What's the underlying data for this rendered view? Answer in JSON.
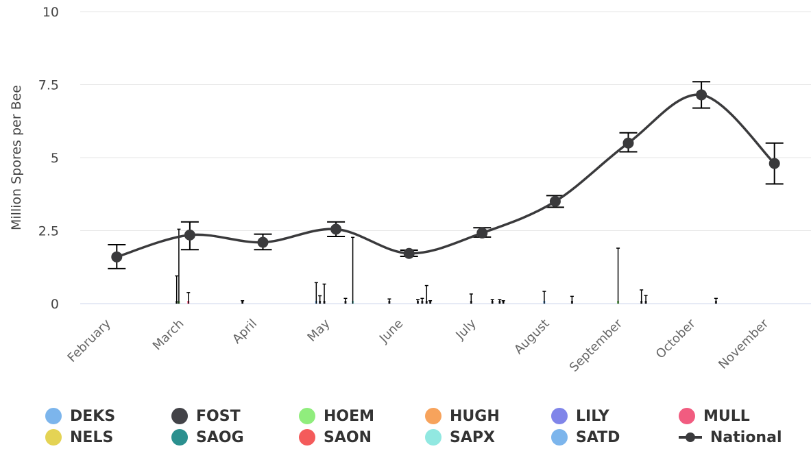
{
  "chart_data": {
    "type": "line",
    "ylabel": "Million Spores per Bee",
    "ylim": [
      0,
      10
    ],
    "y_ticks": [
      "0",
      "2.5",
      "5",
      "7.5",
      "10"
    ],
    "categories": [
      "February",
      "March",
      "April",
      "May",
      "June",
      "July",
      "August",
      "September",
      "October",
      "November"
    ],
    "national": {
      "name": "National",
      "color": "#3a3a3c",
      "values": [
        1.6,
        2.35,
        2.1,
        2.55,
        1.72,
        2.42,
        3.5,
        5.5,
        7.15,
        4.8
      ],
      "error_low": [
        1.2,
        1.85,
        1.85,
        2.3,
        1.62,
        2.28,
        3.3,
        5.2,
        6.7,
        4.1
      ],
      "error_high": [
        2.02,
        2.8,
        2.38,
        2.8,
        1.83,
        2.6,
        3.7,
        5.85,
        7.6,
        5.5
      ]
    },
    "sites": [
      {
        "name": "DEKS",
        "color": "#7cb5ec"
      },
      {
        "name": "FOST",
        "color": "#434348"
      },
      {
        "name": "HOEM",
        "color": "#90ed7d"
      },
      {
        "name": "HUGH",
        "color": "#f7a35c"
      },
      {
        "name": "LILY",
        "color": "#8085e9"
      },
      {
        "name": "MULL",
        "color": "#f15c80"
      },
      {
        "name": "NELS",
        "color": "#e4d354"
      },
      {
        "name": "SAOG",
        "color": "#2b908f"
      },
      {
        "name": "SAON",
        "color": "#f45b5b"
      },
      {
        "name": "SAPX",
        "color": "#91e8e1"
      },
      {
        "name": "SATD",
        "color": "#7cb5ec"
      }
    ],
    "site_errorbars": [
      {
        "x": 0.82,
        "high": 0.95,
        "color": "#434348"
      },
      {
        "x": 0.85,
        "high": 2.55,
        "color": "#90ed7d"
      },
      {
        "x": 0.98,
        "high": 0.38,
        "color": "#f15c80"
      },
      {
        "x": 1.72,
        "high": 0.1,
        "color": "#434348"
      },
      {
        "x": 2.73,
        "high": 0.72,
        "color": "#7cb5ec"
      },
      {
        "x": 2.78,
        "high": 0.27,
        "color": "#434348"
      },
      {
        "x": 2.84,
        "high": 0.67,
        "color": "#434348"
      },
      {
        "x": 3.13,
        "high": 0.18,
        "color": "#434348"
      },
      {
        "x": 3.23,
        "high": 2.27,
        "color": "#91e8e1"
      },
      {
        "x": 3.73,
        "high": 0.16,
        "color": "#434348"
      },
      {
        "x": 4.12,
        "high": 0.14,
        "color": "#434348"
      },
      {
        "x": 4.18,
        "high": 0.18,
        "color": "#434348"
      },
      {
        "x": 4.24,
        "high": 0.62,
        "color": "#434348"
      },
      {
        "x": 4.29,
        "high": 0.1,
        "color": "#434348"
      },
      {
        "x": 4.85,
        "high": 0.33,
        "color": "#434348"
      },
      {
        "x": 5.14,
        "high": 0.14,
        "color": "#434348"
      },
      {
        "x": 5.24,
        "high": 0.14,
        "color": "#434348"
      },
      {
        "x": 5.29,
        "high": 0.1,
        "color": "#434348"
      },
      {
        "x": 5.85,
        "high": 0.42,
        "color": "#7cb5ec"
      },
      {
        "x": 6.23,
        "high": 0.25,
        "color": "#434348"
      },
      {
        "x": 6.86,
        "high": 1.9,
        "color": "#90ed7d"
      },
      {
        "x": 7.18,
        "high": 0.47,
        "color": "#434348"
      },
      {
        "x": 7.24,
        "high": 0.28,
        "color": "#434348"
      },
      {
        "x": 8.2,
        "high": 0.18,
        "color": "#434348"
      }
    ],
    "grid": true,
    "legend_position": "bottom"
  }
}
